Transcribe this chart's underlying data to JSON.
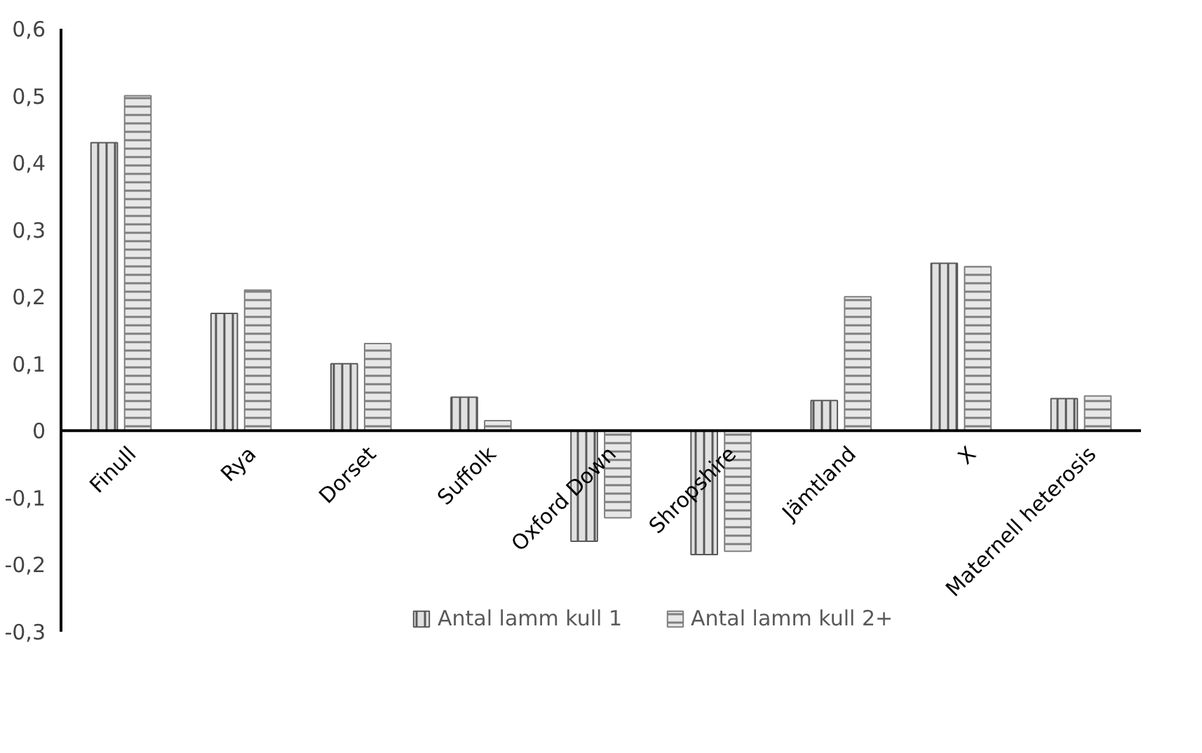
{
  "chart_data": {
    "type": "bar",
    "categories": [
      "Finull",
      "Rya",
      "Dorset",
      "Suffolk",
      "Oxford Down",
      "Shropshire",
      "Jämtland",
      "X",
      "Maternell heterosis"
    ],
    "series": [
      {
        "name": "Antal lamm kull 1",
        "color": "#595959",
        "values": [
          0.43,
          0.175,
          0.1,
          0.05,
          -0.165,
          -0.185,
          0.045,
          0.25,
          0.048
        ]
      },
      {
        "name": "Antal lamm kull 2+",
        "color": "#7f7f7f",
        "values": [
          0.5,
          0.21,
          0.13,
          0.015,
          -0.13,
          -0.18,
          0.2,
          0.245,
          0.052
        ]
      }
    ],
    "ylim": [
      -0.3,
      0.6
    ],
    "yticks": [
      {
        "value": -0.3,
        "label": "-0,3"
      },
      {
        "value": -0.2,
        "label": "-0,2"
      },
      {
        "value": -0.1,
        "label": "-0,1"
      },
      0,
      {
        "value": 0.1,
        "label": "0,1"
      },
      {
        "value": 0.2,
        "label": "0,2"
      },
      {
        "value": 0.3,
        "label": "0,3"
      },
      {
        "value": 0.4,
        "label": "0,4"
      },
      {
        "value": 0.5,
        "label": "0,5"
      },
      {
        "value": 0.6,
        "label": "0,6"
      }
    ],
    "grid": false,
    "legend": "bottom"
  }
}
